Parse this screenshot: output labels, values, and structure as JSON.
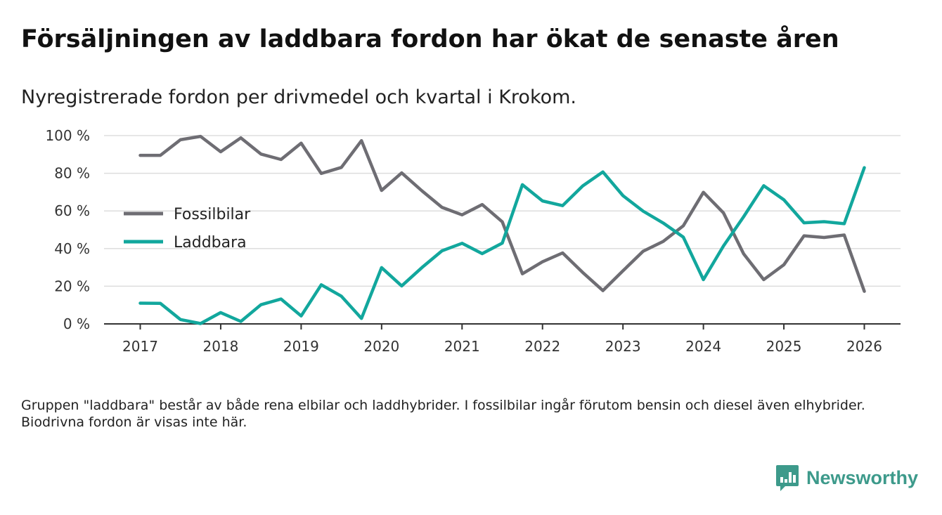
{
  "header": {
    "title": "Försäljningen av laddbara fordon har ökat de senaste åren",
    "subtitle": "Nyregistrerade fordon per drivmedel och kvartal i Krokom."
  },
  "footnote": "Gruppen \"laddbara\" består av både rena elbilar och laddhybrider. I fossilbilar ingår förutom bensin och diesel även elhybrider. Biodrivna fordon är visas inte här.",
  "brand": {
    "name": "Newsworthy",
    "icon": "newsworthy-logo-icon",
    "color": "#3d9a8b"
  },
  "chart_data": {
    "type": "line",
    "title": "Försäljningen av laddbara fordon har ökat de senaste åren",
    "subtitle": "Nyregistrerade fordon per drivmedel och kvartal i Krokom.",
    "xlabel": "",
    "ylabel": "",
    "x_unit": "år (kvartal)",
    "xlim": [
      2016.55,
      2026.45
    ],
    "ylim": [
      0,
      100
    ],
    "yticks": [
      0,
      20,
      40,
      60,
      80,
      100
    ],
    "ytick_labels": [
      "0 %",
      "20 %",
      "40 %",
      "60 %",
      "80 %",
      "100 %"
    ],
    "xticks": [
      2017,
      2018,
      2019,
      2020,
      2021,
      2022,
      2023,
      2024,
      2025,
      2026
    ],
    "xtick_labels": [
      "2017",
      "2018",
      "2019",
      "2020",
      "2021",
      "2022",
      "2023",
      "2024",
      "2025",
      "2026"
    ],
    "grid": true,
    "legend_position": "left",
    "x": [
      2017,
      2017.25,
      2017.5,
      2017.75,
      2018,
      2018.25,
      2018.5,
      2018.75,
      2019,
      2019.25,
      2019.5,
      2019.75,
      2020,
      2020.25,
      2020.5,
      2020.75,
      2021,
      2021.25,
      2021.5,
      2021.75,
      2022,
      2022.25,
      2022.5,
      2022.75,
      2023,
      2023.25,
      2023.5,
      2023.75,
      2024,
      2024.25,
      2024.5,
      2024.75,
      2025,
      2025.25,
      2025.5,
      2025.75,
      2026
    ],
    "series": [
      {
        "name": "Fossilbilar",
        "color": "#6e6d73",
        "values": [
          89.5,
          89.5,
          97.8,
          99.6,
          91.4,
          98.8,
          90.2,
          87.3,
          96.0,
          79.9,
          83.1,
          97.3,
          70.9,
          80.2,
          70.7,
          61.9,
          57.9,
          63.4,
          54.2,
          26.6,
          33.0,
          37.7,
          27.3,
          17.7,
          28.2,
          38.6,
          43.8,
          52.1,
          69.9,
          58.9,
          37.2,
          23.5,
          31.4,
          46.8,
          45.9,
          47.2,
          17.3
        ]
      },
      {
        "name": "Laddbara",
        "color": "#12a79d",
        "values": [
          11.0,
          10.9,
          2.3,
          0.2,
          6.0,
          1.3,
          10.2,
          13.2,
          4.2,
          20.8,
          14.7,
          2.9,
          29.9,
          20.2,
          29.9,
          38.8,
          42.8,
          37.3,
          42.9,
          73.9,
          65.3,
          62.8,
          73.3,
          80.7,
          68.1,
          59.9,
          53.6,
          46.1,
          23.5,
          41.4,
          56.9,
          73.4,
          65.9,
          53.7,
          54.3,
          53.2,
          83.0
        ]
      }
    ]
  }
}
